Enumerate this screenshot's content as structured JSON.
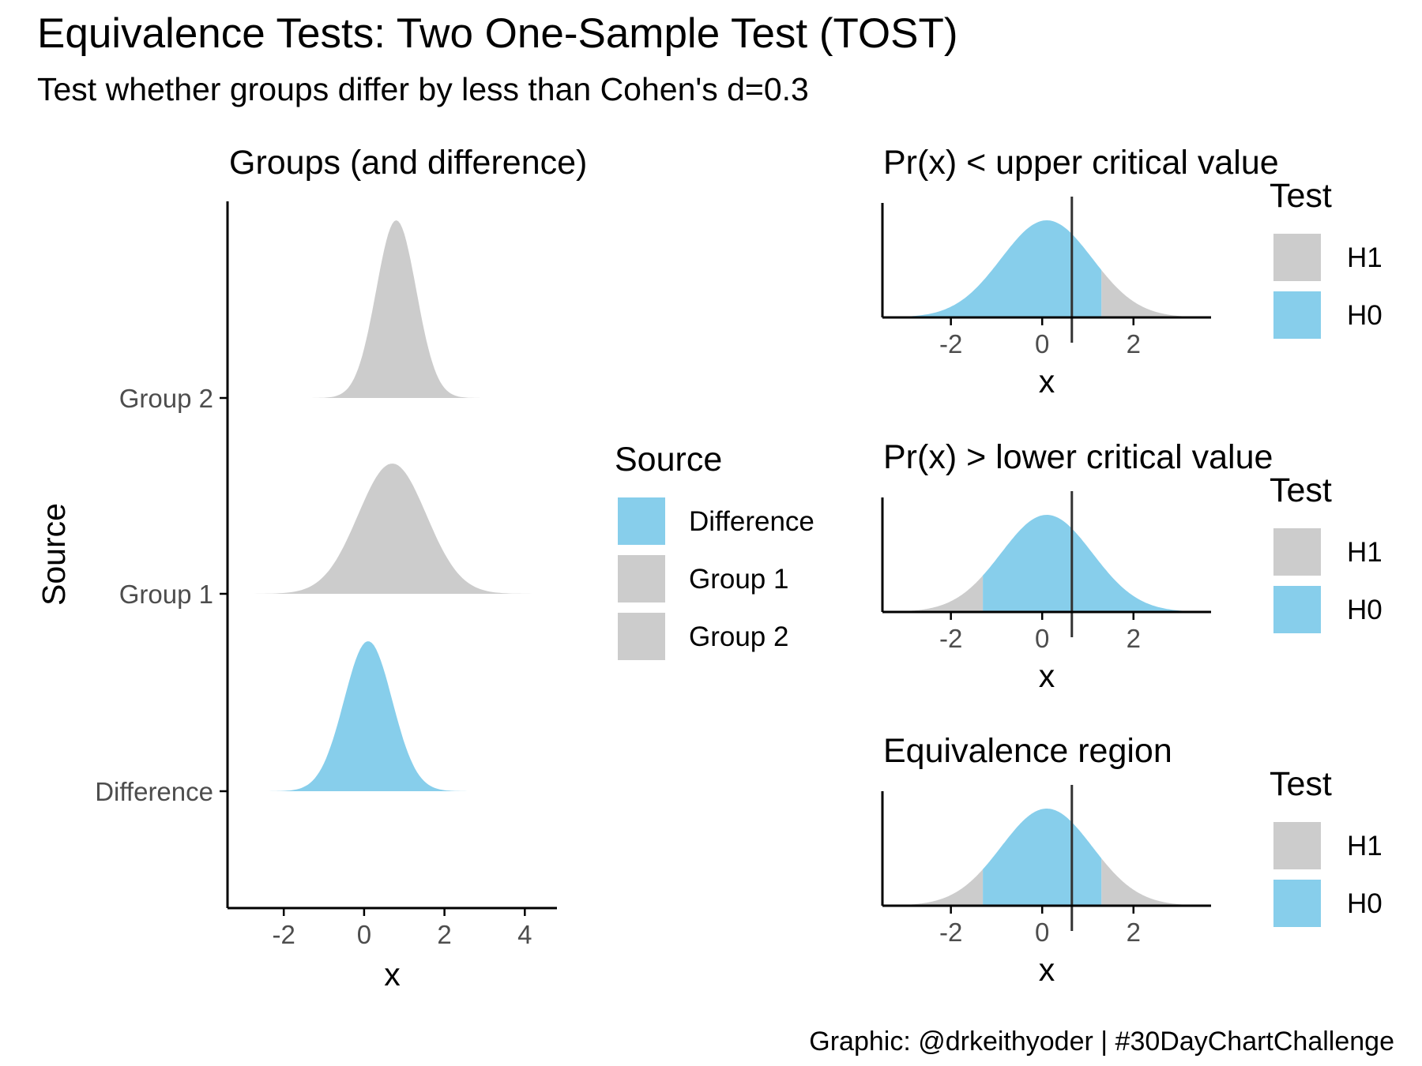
{
  "title": "Equivalence Tests: Two One-Sample Test (TOST)",
  "subtitle": "Test whether groups differ by less than Cohen's d=0.3",
  "caption": "Graphic: @drkeithyoder | #30DayChartChallenge",
  "colors": {
    "blue": "#87CEEB",
    "grey": "#CCCCCC",
    "axis": "#000000",
    "line": "#333333",
    "tick_label": "#4D4D4D"
  },
  "chart_data": [
    {
      "type": "area",
      "subtype": "ridgeline",
      "title": "Groups (and difference)",
      "xlabel": "x",
      "ylabel": "Source",
      "xlim": [
        -3.4,
        4.8
      ],
      "x_ticks": [
        -2,
        0,
        2,
        4
      ],
      "categories": [
        "Difference",
        "Group 1",
        "Group 2"
      ],
      "series": [
        {
          "name": "Difference",
          "mean": 0.1,
          "sd": 0.6,
          "x_range": [
            -3.1,
            3.7
          ],
          "color": "#87CEEB"
        },
        {
          "name": "Group 1",
          "mean": 0.7,
          "sd": 0.85,
          "x_range": [
            -3.1,
            4.3
          ],
          "color": "#CCCCCC"
        },
        {
          "name": "Group 2",
          "mean": 0.8,
          "sd": 0.5,
          "x_range": [
            -2.2,
            3.8
          ],
          "color": "#CCCCCC"
        }
      ],
      "legend": {
        "title": "Source",
        "position": "right",
        "items": [
          "Difference",
          "Group 1",
          "Group 2"
        ]
      },
      "grid": false
    },
    {
      "type": "area",
      "title": "Pr(x) < upper critical value",
      "xlabel": "x",
      "xlim": [
        -3.5,
        3.7
      ],
      "x_ticks": [
        -2,
        0,
        2
      ],
      "distribution": {
        "mean": 0.1,
        "sd": 1.0,
        "x_range": [
          -3.2,
          3.6
        ]
      },
      "critical_values": {
        "lower": null,
        "upper": 1.3
      },
      "observed_line": 0.65,
      "regions": [
        {
          "name": "H0",
          "from": -3.2,
          "to": 1.3
        },
        {
          "name": "H1",
          "from": 1.3,
          "to": 3.6
        }
      ],
      "legend": {
        "title": "Test",
        "position": "right",
        "items": [
          "H1",
          "H0"
        ]
      },
      "grid": false
    },
    {
      "type": "area",
      "title": "Pr(x) > lower critical value",
      "xlabel": "x",
      "xlim": [
        -3.5,
        3.7
      ],
      "x_ticks": [
        -2,
        0,
        2
      ],
      "distribution": {
        "mean": 0.1,
        "sd": 1.0,
        "x_range": [
          -3.2,
          3.4
        ]
      },
      "critical_values": {
        "lower": -1.3,
        "upper": null
      },
      "observed_line": 0.65,
      "regions": [
        {
          "name": "H1",
          "from": -3.2,
          "to": -1.3
        },
        {
          "name": "H0",
          "from": -1.3,
          "to": 3.4
        }
      ],
      "legend": {
        "title": "Test",
        "position": "right",
        "items": [
          "H1",
          "H0"
        ]
      },
      "grid": false
    },
    {
      "type": "area",
      "title": "Equivalence region",
      "xlabel": "x",
      "xlim": [
        -3.5,
        3.7
      ],
      "x_ticks": [
        -2,
        0,
        2
      ],
      "distribution": {
        "mean": 0.1,
        "sd": 1.0,
        "x_range": [
          -3.2,
          3.6
        ]
      },
      "critical_values": {
        "lower": -1.3,
        "upper": 1.3
      },
      "observed_line": 0.65,
      "regions": [
        {
          "name": "H1",
          "from": -3.2,
          "to": -1.3
        },
        {
          "name": "H0",
          "from": -1.3,
          "to": 1.3
        },
        {
          "name": "H1",
          "from": 1.3,
          "to": 3.6
        }
      ],
      "legend": {
        "title": "Test",
        "position": "right",
        "items": [
          "H1",
          "H0"
        ]
      },
      "grid": false
    }
  ]
}
